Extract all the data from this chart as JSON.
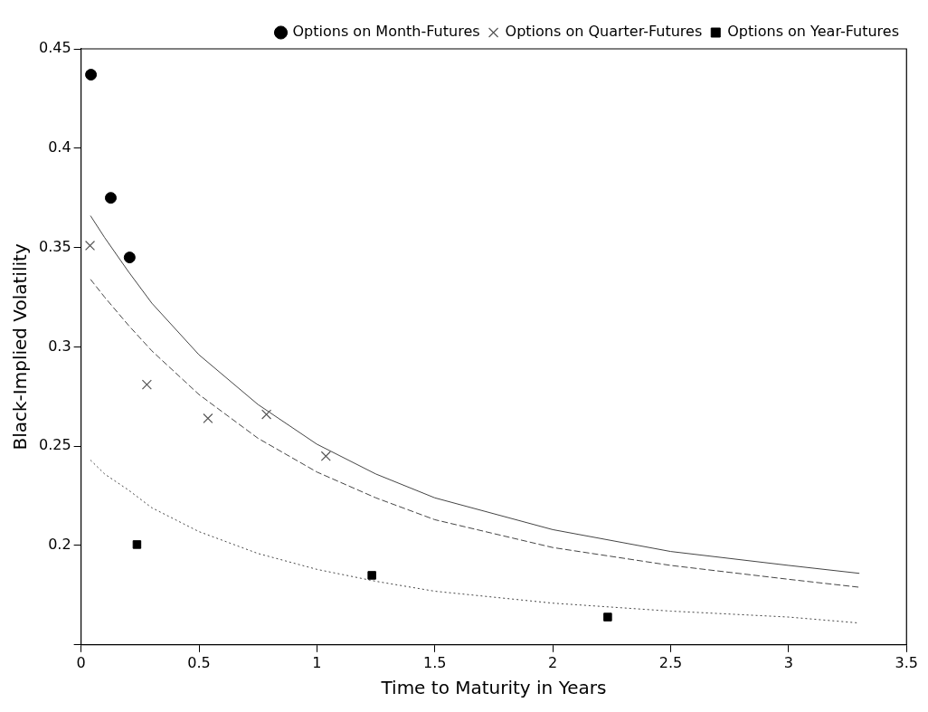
{
  "chart_data": {
    "type": "scatter",
    "xlabel": "Time to Maturity in Years",
    "ylabel": "Black-Implied Volatility",
    "xlim": [
      0,
      3.5
    ],
    "ylim": [
      0.15,
      0.45
    ],
    "xticks": [
      0,
      0.5,
      1,
      1.5,
      2,
      2.5,
      3,
      3.5
    ],
    "yticks": [
      {
        "value": 0.15,
        "label": null
      },
      0.2,
      0.25,
      0.3,
      0.35,
      0.4,
      0.45
    ],
    "grid": false,
    "legend": "top right",
    "series": [
      {
        "name": "Options on Month-Futures",
        "marker": "circle",
        "color": "#000000",
        "x": [
          0.042,
          0.126,
          0.206
        ],
        "values": [
          0.437,
          0.375,
          0.345
        ]
      },
      {
        "name": "Options on Quarter-Futures",
        "marker": "cross",
        "color": "#555555",
        "x": [
          0.038,
          0.279,
          0.538,
          0.786,
          1.038
        ],
        "values": [
          0.351,
          0.281,
          0.264,
          0.266,
          0.245
        ]
      },
      {
        "name": "Options on Year-Futures",
        "marker": "square",
        "color": "#000000",
        "x": [
          0.237,
          1.233,
          2.233
        ],
        "values": [
          0.2005,
          0.185,
          0.164
        ]
      },
      {
        "type": "line",
        "line_style": "solid",
        "marker": "none",
        "color": "#444444",
        "x": [
          0.04,
          0.1,
          0.2,
          0.3,
          0.5,
          0.75,
          1.0,
          1.25,
          1.5,
          2,
          2.5,
          3,
          3.3
        ],
        "values": [
          0.366,
          0.355,
          0.338,
          0.322,
          0.296,
          0.271,
          0.251,
          0.236,
          0.224,
          0.208,
          0.197,
          0.19,
          0.186
        ]
      },
      {
        "type": "line",
        "line_style": "dashed",
        "marker": "none",
        "color": "#444444",
        "x": [
          0.04,
          0.1,
          0.2,
          0.3,
          0.5,
          0.75,
          1.0,
          1.25,
          1.5,
          2,
          2.5,
          3,
          3.3
        ],
        "values": [
          0.334,
          0.325,
          0.311,
          0.298,
          0.276,
          0.254,
          0.237,
          0.224,
          0.213,
          0.199,
          0.19,
          0.183,
          0.179
        ]
      },
      {
        "type": "line",
        "line_style": "dotted",
        "marker": "none",
        "color": "#444444",
        "x": [
          0.04,
          0.1,
          0.2,
          0.3,
          0.5,
          0.75,
          1.0,
          1.25,
          1.5,
          2,
          2.5,
          3,
          3.3
        ],
        "values": [
          0.243,
          0.236,
          0.228,
          0.219,
          0.207,
          0.196,
          0.188,
          0.182,
          0.177,
          0.171,
          0.167,
          0.164,
          0.161
        ]
      }
    ]
  }
}
